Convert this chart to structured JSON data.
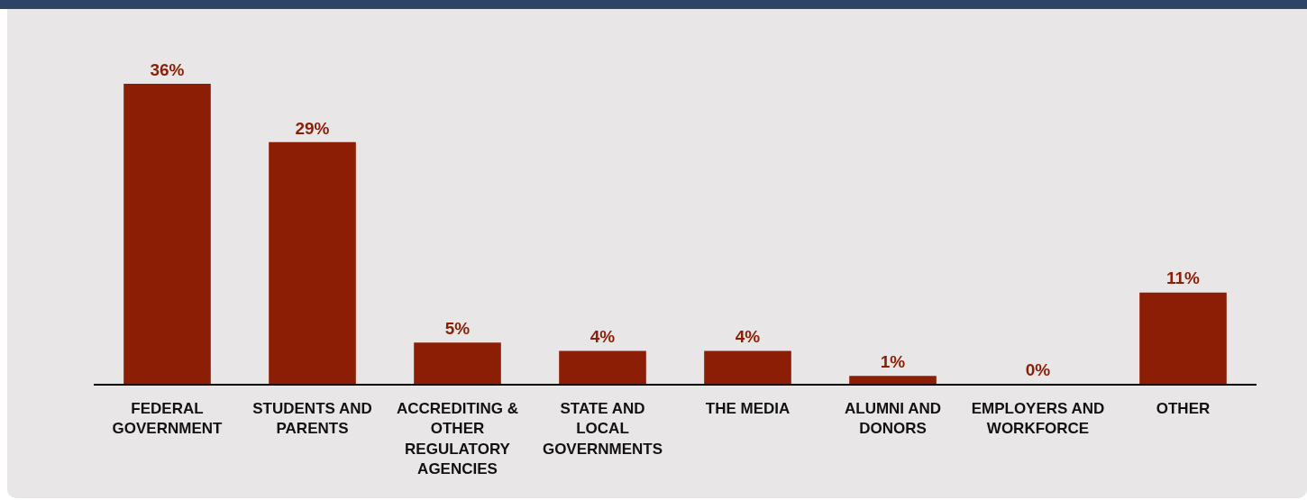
{
  "chart_data": {
    "type": "bar",
    "categories": [
      "FEDERAL GOVERNMENT",
      "STUDENTS AND PARENTS",
      "ACCREDITING & OTHER REGULATORY AGENCIES",
      "STATE AND LOCAL GOVERNMENTS",
      "THE MEDIA",
      "ALUMNI AND DONORS",
      "EMPLOYERS AND WORKFORCE",
      "OTHER"
    ],
    "values": [
      36,
      29,
      5,
      4,
      4,
      1,
      0,
      11
    ],
    "value_labels": [
      "36%",
      "29%",
      "5%",
      "4%",
      "4%",
      "1%",
      "0%",
      "11%"
    ],
    "color": "#8b1e04",
    "grid": false,
    "legend": false
  }
}
